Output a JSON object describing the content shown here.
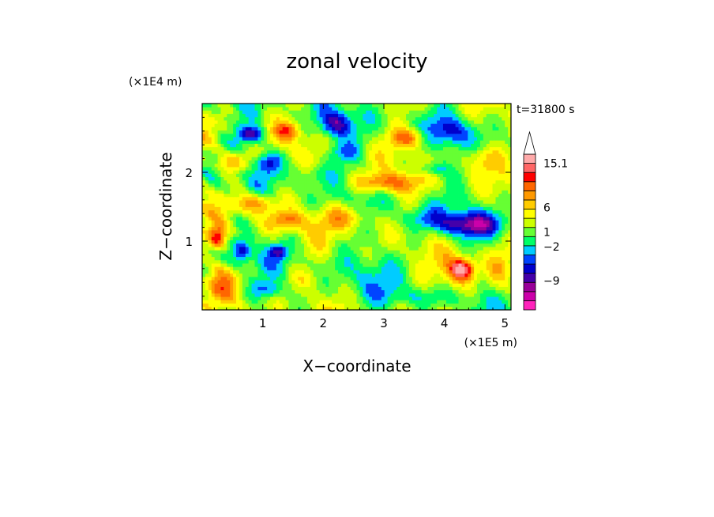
{
  "chart_data": {
    "type": "heatmap",
    "title": "zonal velocity",
    "xlabel": "X−coordinate",
    "ylabel": "Z−coordinate",
    "x_unit": "(×1E5 m)",
    "y_unit": "(×1E4 m)",
    "time_label": "t=31800 s",
    "xlim": [
      0,
      5.1
    ],
    "ylim": [
      0,
      3
    ],
    "x_ticks": [
      {
        "value": 1,
        "label": "1"
      },
      {
        "value": 2,
        "label": "2"
      },
      {
        "value": 3,
        "label": "3"
      },
      {
        "value": 4,
        "label": "4"
      },
      {
        "value": 5,
        "label": "5"
      }
    ],
    "y_ticks": [
      {
        "value": 1,
        "label": "1"
      },
      {
        "value": 2,
        "label": "2"
      }
    ],
    "colorbar": {
      "bins": [
        {
          "color": "#ff22bb"
        },
        {
          "color": "#cc00aa"
        },
        {
          "color": "#990099"
        },
        {
          "color": "#4400aa"
        },
        {
          "color": "#0000cc"
        },
        {
          "color": "#0044ff"
        },
        {
          "color": "#00ccff"
        },
        {
          "color": "#00ff66"
        },
        {
          "color": "#66ff33"
        },
        {
          "color": "#ccff00"
        },
        {
          "color": "#ffff00"
        },
        {
          "color": "#ffcc00"
        },
        {
          "color": "#ff9900"
        },
        {
          "color": "#ff6600"
        },
        {
          "color": "#ff0000"
        },
        {
          "color": "#ff6666"
        },
        {
          "color": "#ffaaaa"
        }
      ],
      "labels": [
        {
          "value": 15.1,
          "label": "15.1"
        },
        {
          "value": 6,
          "label": "6"
        },
        {
          "value": 1,
          "label": "1"
        },
        {
          "value": -2,
          "label": "−2"
        },
        {
          "value": -9,
          "label": "−9"
        }
      ]
    },
    "field_blobs": [
      {
        "x": 0.25,
        "y": 1.05,
        "rx": 0.15,
        "ry": 0.18,
        "v": 12
      },
      {
        "x": 0.65,
        "y": 0.85,
        "rx": 0.15,
        "ry": 0.18,
        "v": -8
      },
      {
        "x": 1.25,
        "y": 0.85,
        "rx": 0.15,
        "ry": 0.1,
        "v": -7
      },
      {
        "x": 0.85,
        "y": 1.55,
        "rx": 0.3,
        "ry": 0.15,
        "v": 9
      },
      {
        "x": 1.4,
        "y": 1.3,
        "rx": 0.3,
        "ry": 0.14,
        "v": 7
      },
      {
        "x": 2.4,
        "y": 1.35,
        "rx": 0.45,
        "ry": 0.18,
        "v": 6
      },
      {
        "x": 3.6,
        "y": 1.35,
        "rx": 0.35,
        "ry": 0.15,
        "v": -4
      },
      {
        "x": 4.4,
        "y": 1.25,
        "rx": 0.55,
        "ry": 0.17,
        "v": -10
      },
      {
        "x": 4.2,
        "y": 0.55,
        "rx": 0.3,
        "ry": 0.3,
        "v": 7
      },
      {
        "x": 4.3,
        "y": 0.6,
        "rx": 0.18,
        "ry": 0.14,
        "v": 11
      },
      {
        "x": 2.6,
        "y": 0.5,
        "rx": 0.6,
        "ry": 0.35,
        "v": -1.5
      },
      {
        "x": 3.4,
        "y": 0.8,
        "rx": 0.4,
        "ry": 0.3,
        "v": -1.2
      },
      {
        "x": 1.7,
        "y": 0.45,
        "rx": 0.4,
        "ry": 0.15,
        "v": 3
      },
      {
        "x": 3.6,
        "y": 0.2,
        "rx": 0.6,
        "ry": 0.12,
        "v": -3
      },
      {
        "x": 0.8,
        "y": 2.55,
        "rx": 0.22,
        "ry": 0.13,
        "v": -10
      },
      {
        "x": 1.4,
        "y": 2.6,
        "rx": 0.2,
        "ry": 0.13,
        "v": 8
      },
      {
        "x": 2.2,
        "y": 2.7,
        "rx": 0.25,
        "ry": 0.18,
        "v": -9
      },
      {
        "x": 3.4,
        "y": 2.5,
        "rx": 0.3,
        "ry": 0.14,
        "v": 8
      },
      {
        "x": 2.3,
        "y": 2.3,
        "rx": 0.3,
        "ry": 0.15,
        "v": -5
      },
      {
        "x": 4.1,
        "y": 2.6,
        "rx": 0.35,
        "ry": 0.2,
        "v": -6
      },
      {
        "x": 4.6,
        "y": 2.2,
        "rx": 0.3,
        "ry": 0.2,
        "v": 5
      },
      {
        "x": 3.0,
        "y": 1.85,
        "rx": 0.5,
        "ry": 0.15,
        "v": 9
      },
      {
        "x": 3.8,
        "y": 2.05,
        "rx": 0.25,
        "ry": 0.1,
        "v": -6
      },
      {
        "x": 1.8,
        "y": 2.0,
        "rx": 0.3,
        "ry": 0.15,
        "v": -3
      },
      {
        "x": 0.5,
        "y": 2.15,
        "rx": 0.25,
        "ry": 0.15,
        "v": 8
      },
      {
        "x": 1.1,
        "y": 2.15,
        "rx": 0.2,
        "ry": 0.15,
        "v": -7
      },
      {
        "x": 4.9,
        "y": 0.5,
        "rx": 0.2,
        "ry": 0.35,
        "v": 4
      },
      {
        "x": 0.3,
        "y": 0.4,
        "rx": 0.25,
        "ry": 0.25,
        "v": 5
      },
      {
        "x": 1.05,
        "y": 0.3,
        "rx": 0.3,
        "ry": 0.12,
        "v": -5
      }
    ]
  }
}
